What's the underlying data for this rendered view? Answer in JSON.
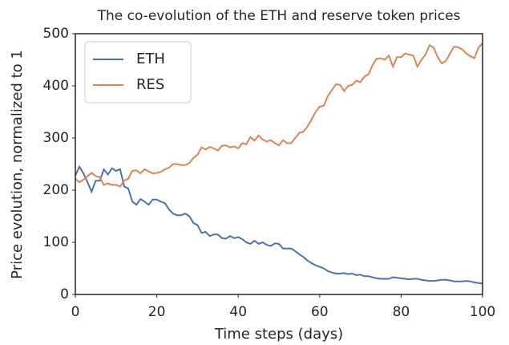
{
  "chart_data": {
    "type": "line",
    "title": "The co-evolution of the ETH and reserve token prices",
    "xlabel": "Time steps (days)",
    "ylabel": "Price evolution, normalized to 1",
    "x": [
      0,
      1,
      2,
      3,
      4,
      5,
      6,
      7,
      8,
      9,
      10,
      11,
      12,
      13,
      14,
      15,
      16,
      17,
      18,
      19,
      20,
      21,
      22,
      23,
      24,
      25,
      26,
      27,
      28,
      29,
      30,
      31,
      32,
      33,
      34,
      35,
      36,
      37,
      38,
      39,
      40,
      41,
      42,
      43,
      44,
      45,
      46,
      47,
      48,
      49,
      50,
      51,
      52,
      53,
      54,
      55,
      56,
      57,
      58,
      59,
      60,
      61,
      62,
      63,
      64,
      65,
      66,
      67,
      68,
      69,
      70,
      71,
      72,
      73,
      74,
      75,
      76,
      77,
      78,
      79,
      80,
      81,
      82,
      83,
      84,
      85,
      86,
      87,
      88,
      89,
      90,
      91,
      92,
      93,
      94,
      95,
      96,
      97,
      98,
      99,
      100
    ],
    "series": [
      {
        "name": "ETH",
        "color": "#4c72b0",
        "values": [
          228,
          245,
          232,
          215,
          197,
          218,
          218,
          240,
          230,
          242,
          237,
          240,
          207,
          203,
          178,
          172,
          183,
          178,
          172,
          182,
          182,
          178,
          175,
          163,
          155,
          152,
          152,
          155,
          150,
          137,
          133,
          118,
          120,
          112,
          115,
          115,
          108,
          107,
          112,
          108,
          110,
          106,
          100,
          97,
          103,
          97,
          100,
          95,
          93,
          98,
          97,
          88,
          88,
          88,
          83,
          77,
          72,
          65,
          60,
          56,
          53,
          50,
          45,
          42,
          40,
          40,
          41,
          39,
          40,
          37,
          38,
          35,
          35,
          33,
          31,
          30,
          30,
          30,
          33,
          32,
          31,
          30,
          29,
          30,
          30,
          28,
          27,
          26,
          26,
          27,
          28,
          28,
          27,
          25,
          25,
          25,
          26,
          25,
          23,
          22,
          21
        ]
      },
      {
        "name": "RES",
        "color": "#dd8452",
        "values": [
          222,
          215,
          220,
          227,
          233,
          227,
          225,
          210,
          213,
          210,
          210,
          207,
          218,
          222,
          237,
          238,
          232,
          240,
          236,
          232,
          233,
          235,
          240,
          243,
          250,
          250,
          248,
          248,
          252,
          262,
          268,
          282,
          278,
          283,
          280,
          276,
          285,
          286,
          282,
          284,
          280,
          290,
          288,
          302,
          295,
          305,
          297,
          293,
          296,
          290,
          286,
          296,
          290,
          290,
          300,
          310,
          312,
          322,
          335,
          350,
          360,
          362,
          380,
          392,
          403,
          402,
          390,
          400,
          402,
          410,
          407,
          418,
          422,
          440,
          452,
          453,
          450,
          458,
          437,
          455,
          455,
          462,
          460,
          458,
          437,
          450,
          460,
          478,
          473,
          455,
          443,
          448,
          462,
          475,
          474,
          470,
          462,
          457,
          453,
          473,
          482
        ]
      }
    ],
    "xlim": [
      0,
      100
    ],
    "xticks": [
      0,
      20,
      40,
      60,
      80,
      100
    ],
    "ylim": [
      0,
      500
    ],
    "yticks": [
      0,
      100,
      200,
      300,
      400,
      500
    ],
    "legend": "upper left",
    "grid": false
  }
}
